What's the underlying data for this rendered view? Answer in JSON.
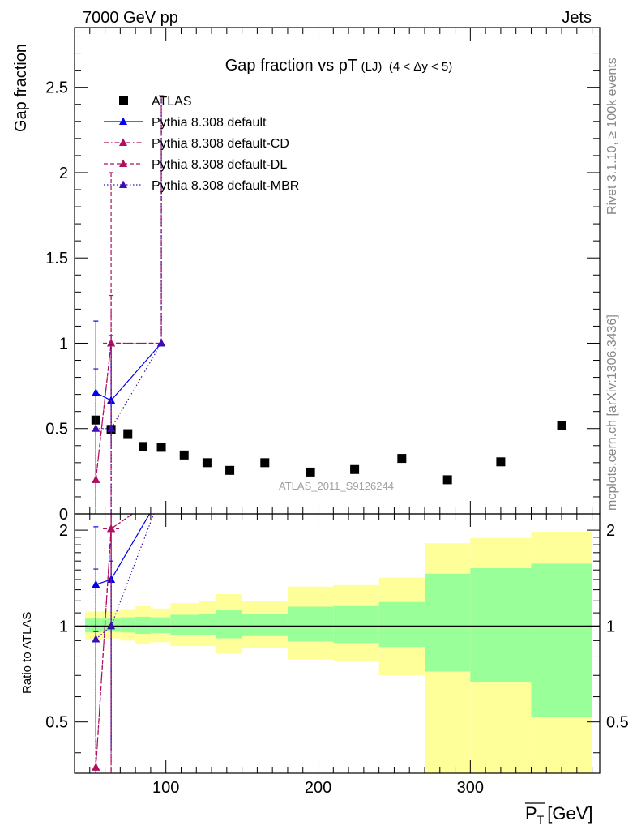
{
  "header": {
    "left": "7000 GeV pp",
    "right": "Jets"
  },
  "title_parts": {
    "main": "Gap fraction vs pT",
    "lj": "(LJ)",
    "range": "(4 < Δy < 5)"
  },
  "side_labels": {
    "top": "Rivet 3.1.10, ≥ 100k events",
    "bottom": "mcplots.cern.ch [arXiv:1306.3436]"
  },
  "watermark": "ATLAS_2011_S9126244",
  "chart_data": [
    {
      "type": "scatter",
      "ylabel": "Gap fraction",
      "xlim": [
        40,
        385
      ],
      "ylim": [
        0,
        2.85
      ],
      "yticks": [
        "0",
        "0.5",
        "1",
        "1.5",
        "2",
        "2.5"
      ],
      "legend_position": "top-left",
      "series": [
        {
          "name": "ATLAS",
          "color": "#000000",
          "marker": "square",
          "x": [
            54,
            64,
            75,
            85,
            97,
            112,
            127,
            142,
            165,
            195,
            224,
            255,
            285,
            320,
            360
          ],
          "y": [
            0.55,
            0.495,
            0.47,
            0.395,
            0.39,
            0.345,
            0.3,
            0.255,
            0.3,
            0.245,
            0.26,
            0.325,
            0.2,
            0.305,
            0.52
          ]
        },
        {
          "name": "Pythia 8.308 default",
          "color": "#0000ee",
          "dash": "",
          "marker": "triangle",
          "x": [
            54,
            64,
            97
          ],
          "y": [
            0.71,
            0.665,
            1.0
          ],
          "err_lo": [
            0.71,
            0.26,
            0
          ],
          "err_hi": [
            0.42,
            0.38,
            0
          ]
        },
        {
          "name": "Pythia 8.308 default-CD",
          "color": "#b0105e",
          "dash": "6,3,1.5,3",
          "marker": "triangle",
          "x": [
            54,
            64,
            97
          ],
          "y": [
            0.2,
            1.0,
            1.0
          ],
          "err_lo": [
            0.2,
            1.0,
            0
          ],
          "err_hi": [
            0.3,
            0.28,
            1.45
          ]
        },
        {
          "name": "Pythia 8.308 default-DL",
          "color": "#b0105e",
          "dash": "5,3",
          "marker": "triangle",
          "x": [
            54,
            64,
            97
          ],
          "y": [
            0.2,
            1.0,
            1.0
          ],
          "err_lo": [
            0.2,
            1.0,
            0
          ],
          "err_hi": [
            0.3,
            1.0,
            1.45
          ]
        },
        {
          "name": "Pythia 8.308 default-MBR",
          "color": "#3a0fb0",
          "dash": "1.5,2.5",
          "marker": "triangle",
          "x": [
            54,
            64,
            97
          ],
          "y": [
            0.5,
            0.5,
            1.0
          ],
          "err_lo": [
            0.5,
            0.5,
            0
          ],
          "err_hi": [
            0.35,
            0.5,
            1.45
          ]
        }
      ]
    },
    {
      "type": "line",
      "ylabel": "Ratio to ATLAS",
      "xlabel": "P_T [GeV]",
      "xlim": [
        40,
        385
      ],
      "ylim": [
        0.345,
        2.25
      ],
      "log_y": true,
      "xticks": [
        "100",
        "200",
        "300"
      ],
      "yticks": [
        "0.5",
        "1",
        "2"
      ],
      "bands": {
        "x_edges": [
          47,
          58,
          70,
          80,
          90,
          103,
          122,
          133,
          150,
          180,
          210,
          240,
          270,
          300,
          340,
          380
        ],
        "green_lo": [
          0.955,
          0.96,
          0.955,
          0.945,
          0.95,
          0.935,
          0.935,
          0.915,
          0.93,
          0.895,
          0.885,
          0.86,
          0.72,
          0.665,
          0.52
        ],
        "green_hi": [
          1.055,
          1.055,
          1.065,
          1.07,
          1.065,
          1.085,
          1.095,
          1.12,
          1.095,
          1.15,
          1.155,
          1.19,
          1.46,
          1.52,
          1.57
        ],
        "yellow_lo": [
          0.905,
          0.915,
          0.9,
          0.88,
          0.89,
          0.865,
          0.865,
          0.82,
          0.855,
          0.785,
          0.775,
          0.7,
          0.33,
          0.33,
          0.33
        ],
        "yellow_hi": [
          1.11,
          1.115,
          1.13,
          1.155,
          1.135,
          1.18,
          1.2,
          1.26,
          1.2,
          1.33,
          1.345,
          1.42,
          1.82,
          1.89,
          1.98
        ],
        "green_color": "#99ff99",
        "yellow_color": "#ffff99"
      },
      "series": [
        {
          "name": "Pythia 8.308 default",
          "color": "#0000ee",
          "dash": "",
          "x": [
            54,
            64,
            97
          ],
          "y": [
            1.35,
            1.4,
            2.6
          ],
          "err_lo": [
            0.9,
            0.98,
            0
          ],
          "err_hi": [
            0.7,
            0.9,
            0
          ]
        },
        {
          "name": "Pythia 8.308 default-CD",
          "color": "#b0105e",
          "dash": "6,3,1.5,3",
          "x": [
            54,
            64,
            97
          ],
          "y": [
            0.36,
            2.02,
            2.6
          ],
          "err_lo": [
            0.05,
            1.7,
            0
          ],
          "err_hi": [
            0.6,
            0.6,
            0
          ]
        },
        {
          "name": "Pythia 8.308 default-DL",
          "color": "#b0105e",
          "dash": "5,3",
          "x": [
            54,
            64,
            97
          ],
          "y": [
            0.36,
            2.02,
            2.6
          ],
          "err_lo": [
            0.05,
            1.7,
            0
          ],
          "err_hi": [
            0.6,
            0.6,
            0
          ]
        },
        {
          "name": "Pythia 8.308 default-MBR",
          "color": "#3a0fb0",
          "dash": "1.5,2.5",
          "x": [
            54,
            64,
            97
          ],
          "y": [
            0.91,
            1.0,
            2.6
          ],
          "err_lo": [
            0.56,
            0.6,
            0
          ],
          "err_hi": [
            0.6,
            0.6,
            0
          ]
        }
      ]
    }
  ]
}
